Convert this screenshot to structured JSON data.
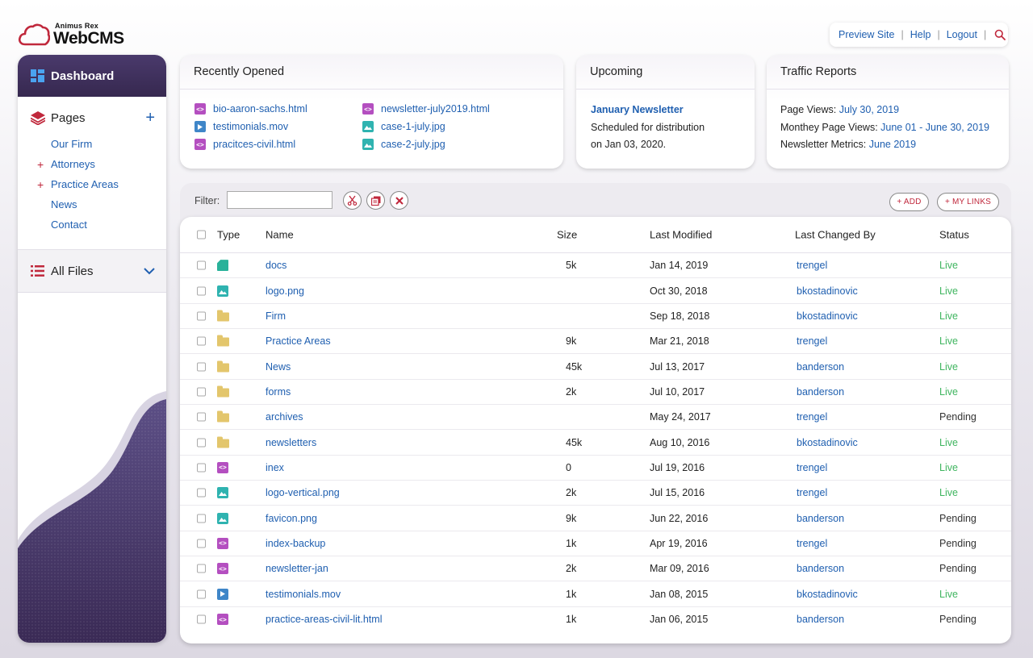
{
  "brand": {
    "small": "Animus Rex",
    "big": "WebCMS"
  },
  "toplinks": {
    "preview": "Preview Site",
    "help": "Help",
    "logout": "Logout",
    "sep": "|"
  },
  "sidebar": {
    "dashboard": "Dashboard",
    "pages_title": "Pages",
    "pages_add": "+",
    "pages": [
      {
        "label": "Our Firm",
        "mark": ""
      },
      {
        "label": "Attorneys",
        "mark": "+"
      },
      {
        "label": "Practice Areas",
        "mark": "+"
      },
      {
        "label": "News",
        "mark": ""
      },
      {
        "label": "Contact",
        "mark": ""
      }
    ],
    "all_files": "All Files"
  },
  "recent": {
    "title": "Recently Opened",
    "col1": [
      {
        "name": "bio-aaron-sachs.html",
        "type": "code"
      },
      {
        "name": "testimonials.mov",
        "type": "video"
      },
      {
        "name": "pracitces-civil.html",
        "type": "code"
      }
    ],
    "col2": [
      {
        "name": "newsletter-july2019.html",
        "type": "code"
      },
      {
        "name": "case-1-july.jpg",
        "type": "img"
      },
      {
        "name": "case-2-july.jpg",
        "type": "img"
      }
    ]
  },
  "upcoming": {
    "title": "Upcoming",
    "headline": "January Newsletter",
    "line1": "Scheduled for distribution",
    "line2": "on Jan 03, 2020."
  },
  "traffic": {
    "title": "Traffic Reports",
    "rows": [
      {
        "label": "Page Views: ",
        "value": "July 30, 2019"
      },
      {
        "label": "Monthey Page Views: ",
        "value": "June 01 - June 30, 2019"
      },
      {
        "label": "Newsletter Metrics: ",
        "value": "June 2019"
      }
    ]
  },
  "filter": {
    "label": "Filter:",
    "value": "",
    "add": "+ ADD",
    "mylinks": "+ MY LINKS"
  },
  "table": {
    "headers": {
      "type": "Type",
      "name": "Name",
      "size": "Size",
      "modified": "Last Modified",
      "by": "Last Changed By",
      "status": "Status"
    },
    "rows": [
      {
        "type": "doc",
        "name": "docs",
        "size": "5k",
        "modified": "Jan 14, 2019",
        "by": "trengel",
        "status": "Live"
      },
      {
        "type": "img",
        "name": "logo.png",
        "size": "",
        "modified": "Oct 30, 2018",
        "by": "bkostadinovic",
        "status": "Live"
      },
      {
        "type": "folder",
        "name": "Firm",
        "size": "",
        "modified": "Sep 18, 2018",
        "by": "bkostadinovic",
        "status": "Live"
      },
      {
        "type": "folder",
        "name": "Practice Areas",
        "size": "9k",
        "modified": "Mar 21, 2018",
        "by": "trengel",
        "status": "Live"
      },
      {
        "type": "folder",
        "name": "News",
        "size": "45k",
        "modified": "Jul 13, 2017",
        "by": "banderson",
        "status": "Live"
      },
      {
        "type": "folder",
        "name": "forms",
        "size": "2k",
        "modified": "Jul 10, 2017",
        "by": "banderson",
        "status": "Live"
      },
      {
        "type": "folder",
        "name": "archives",
        "size": "",
        "modified": "May 24, 2017",
        "by": "trengel",
        "status": "Pending"
      },
      {
        "type": "folder",
        "name": "newsletters",
        "size": "45k",
        "modified": "Aug 10, 2016",
        "by": "bkostadinovic",
        "status": "Live"
      },
      {
        "type": "code",
        "name": "inex",
        "size": "0",
        "modified": "Jul 19, 2016",
        "by": "trengel",
        "status": "Live"
      },
      {
        "type": "img",
        "name": "logo-vertical.png",
        "size": "2k",
        "modified": "Jul 15, 2016",
        "by": "trengel",
        "status": "Live"
      },
      {
        "type": "img",
        "name": "favicon.png",
        "size": "9k",
        "modified": "Jun 22, 2016",
        "by": "banderson",
        "status": "Pending"
      },
      {
        "type": "code",
        "name": "index-backup",
        "size": "1k",
        "modified": "Apr 19, 2016",
        "by": "trengel",
        "status": "Pending"
      },
      {
        "type": "code",
        "name": "newsletter-jan",
        "size": "2k",
        "modified": "Mar 09, 2016",
        "by": "banderson",
        "status": "Pending"
      },
      {
        "type": "video",
        "name": "testimonials.mov",
        "size": "1k",
        "modified": "Jan 08, 2015",
        "by": "bkostadinovic",
        "status": "Live"
      },
      {
        "type": "code",
        "name": "practice-areas-civil-lit.html",
        "size": "1k",
        "modified": "Jan 06, 2015",
        "by": "banderson",
        "status": "Pending"
      }
    ]
  },
  "colors": {
    "accent": "#c0283c",
    "link": "#1f5fb0",
    "sidebar_dark": "#36284f",
    "live": "#3fb55f"
  }
}
